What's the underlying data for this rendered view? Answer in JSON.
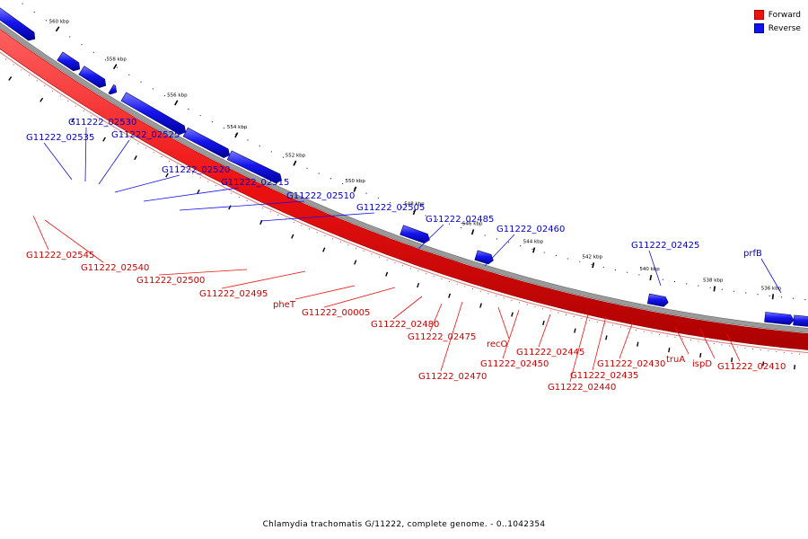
{
  "legend": [
    {
      "label": "Forward",
      "color": "#ee1111"
    },
    {
      "label": "Reverse",
      "color": "#1111ee"
    }
  ],
  "caption": "Chlamydia trachomatis G/11222, complete genome. - 0..1042354",
  "colors": {
    "forward": "#ee1111",
    "reverse": "#1111ee",
    "backbone": "#888888",
    "ticks": "#000000"
  },
  "ruler_labels": [
    "560 kbp",
    "558 kbp",
    "556 kbp",
    "554 kbp",
    "552 kbp",
    "550 kbp",
    "548 kbp",
    "546 kbp",
    "544 kbp",
    "542 kbp",
    "540 kbp",
    "538 kbp",
    "536 kbp"
  ],
  "reverse_genes": [
    "G11222_02535",
    "G11222_02530",
    "G11222_02525",
    "G11222_02520",
    "G11222_02515",
    "G11222_02510",
    "G11222_02505",
    "G11222_02485",
    "G11222_02460",
    "G11222_02425",
    "prfB"
  ],
  "forward_genes": [
    "G11222_02545",
    "G11222_02540",
    "G11222_02500",
    "G11222_02495",
    "pheT",
    "G11222_00005",
    "G11222_02480",
    "G11222_02475",
    "G11222_02470",
    "recO",
    "G11222_02450",
    "G11222_02445",
    "G11222_02440",
    "G11222_02435",
    "G11222_02430",
    "truA",
    "ispD",
    "G11222_02410"
  ]
}
